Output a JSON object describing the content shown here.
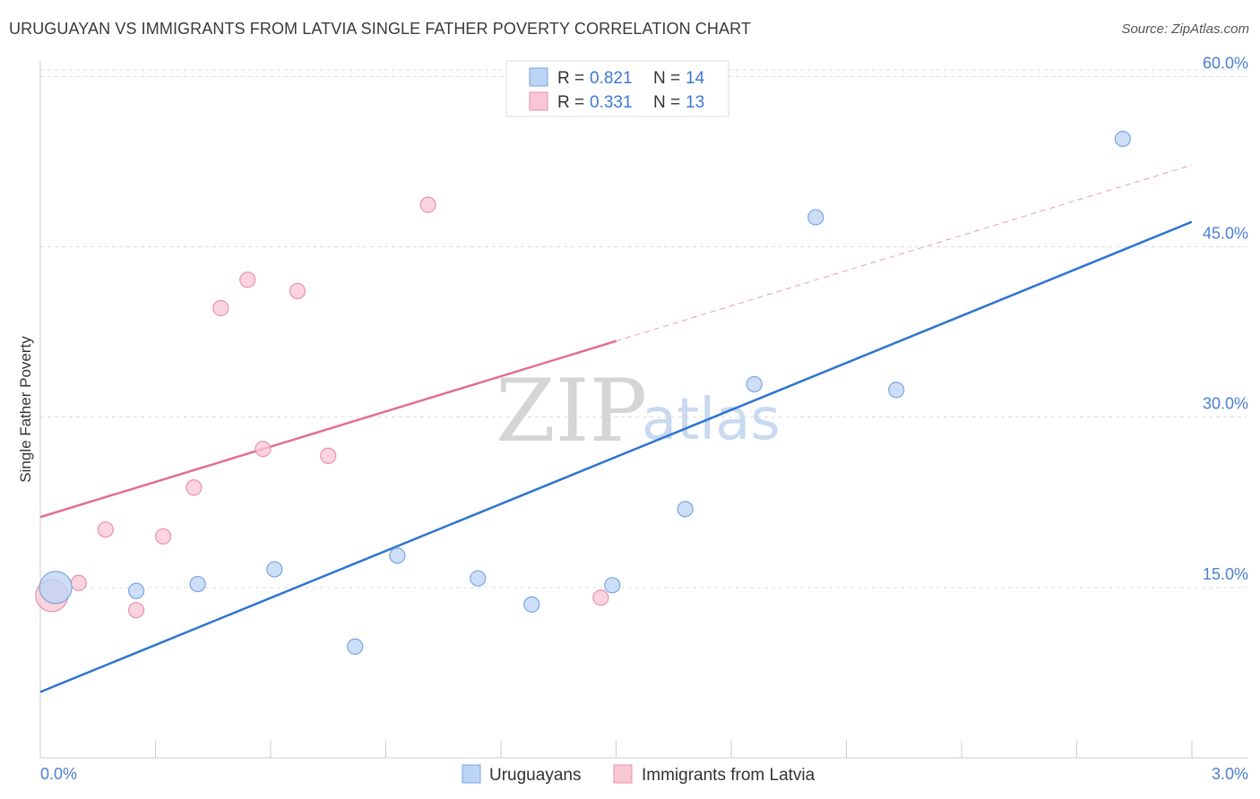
{
  "header": {
    "title": "URUGUAYAN VS IMMIGRANTS FROM LATVIA SINGLE FATHER POVERTY CORRELATION CHART",
    "source": "Source: ZipAtlas.com"
  },
  "watermark": {
    "part1": "ZIP",
    "part2": "atlas"
  },
  "colors": {
    "blue_fill": "#bcd4f5",
    "blue_stroke": "#7aa5e0",
    "blue_line": "#2f74d0",
    "pink_fill": "#f9c6d4",
    "pink_stroke": "#e892ab",
    "pink_line": "#e26e96",
    "grid": "#dddddd",
    "axis_label": "#4a7fd1"
  },
  "legend": {
    "rows": [
      {
        "r_label": "R = ",
        "r_value": "0.821",
        "n_label": "N = ",
        "n_value": "14"
      },
      {
        "r_label": "R = ",
        "r_value": "0.331",
        "n_label": "N = ",
        "n_value": "13"
      }
    ]
  },
  "chart_data": {
    "type": "scatter",
    "title": "URUGUAYAN VS IMMIGRANTS FROM LATVIA SINGLE FATHER POVERTY CORRELATION CHART",
    "xlabel": "",
    "ylabel": "Single Father Poverty",
    "xlim": [
      0,
      3.0
    ],
    "ylim": [
      0,
      63.5
    ],
    "x_tick_labels": [
      "0.0%",
      "3.0%"
    ],
    "y_ticks": [
      15,
      30,
      45,
      60
    ],
    "y_tick_labels": [
      "15.0%",
      "30.0%",
      "45.0%",
      "60.0%"
    ],
    "grid": true,
    "legend_position": "top-center",
    "series": [
      {
        "name": "Uruguayans",
        "color": "#bcd4f5",
        "points": [
          {
            "x": 0.04,
            "y": 15.0,
            "size": "large"
          },
          {
            "x": 0.25,
            "y": 14.7
          },
          {
            "x": 0.41,
            "y": 15.3
          },
          {
            "x": 0.61,
            "y": 16.6
          },
          {
            "x": 0.82,
            "y": 9.8
          },
          {
            "x": 0.93,
            "y": 17.8
          },
          {
            "x": 1.14,
            "y": 15.8
          },
          {
            "x": 1.28,
            "y": 13.5
          },
          {
            "x": 1.49,
            "y": 15.2
          },
          {
            "x": 1.68,
            "y": 21.9
          },
          {
            "x": 1.86,
            "y": 32.9
          },
          {
            "x": 2.02,
            "y": 47.6
          },
          {
            "x": 2.23,
            "y": 32.4
          },
          {
            "x": 2.82,
            "y": 54.5
          }
        ],
        "trend": {
          "x": [
            0.0,
            3.0
          ],
          "y": [
            5.8,
            47.2
          ]
        }
      },
      {
        "name": "Immigrants from Latvia",
        "color": "#f9c6d4",
        "points": [
          {
            "x": 0.03,
            "y": 14.3,
            "size": "large"
          },
          {
            "x": 0.1,
            "y": 15.4
          },
          {
            "x": 0.17,
            "y": 20.1
          },
          {
            "x": 0.25,
            "y": 13.0
          },
          {
            "x": 0.32,
            "y": 19.5
          },
          {
            "x": 0.4,
            "y": 23.8
          },
          {
            "x": 0.47,
            "y": 39.6
          },
          {
            "x": 0.54,
            "y": 42.1
          },
          {
            "x": 0.58,
            "y": 27.2
          },
          {
            "x": 0.67,
            "y": 41.1
          },
          {
            "x": 0.75,
            "y": 26.6
          },
          {
            "x": 1.01,
            "y": 48.7
          },
          {
            "x": 1.46,
            "y": 14.1
          }
        ],
        "trend": {
          "x": [
            0.0,
            1.5
          ],
          "y": [
            21.2,
            36.7
          ]
        },
        "trend_extension": {
          "x": [
            1.5,
            3.0
          ],
          "y": [
            36.7,
            52.2
          ]
        }
      }
    ]
  }
}
